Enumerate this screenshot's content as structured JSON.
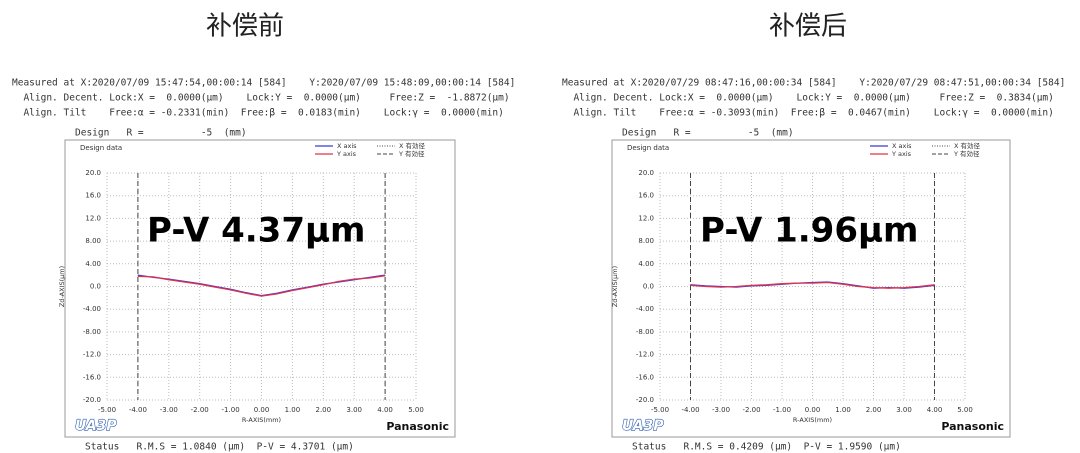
{
  "chart_data": [
    {
      "type": "line",
      "title": "补偿前",
      "header_lines": [
        "Measured at X:2020/07/09 15:47:54,00:00:14 [584]    Y:2020/07/09 15:48:09,00:00:14 [584]",
        "  Align. Decent. Lock:X =  0.0000(μm)    Lock:Y =  0.0000(μm)     Free:Z =  -1.8872(μm)",
        "  Align. Tilt    Free:α = -0.2331(min)  Free:β =  0.0183(min)    Lock:γ =  0.0000(min)"
      ],
      "design": "Design   R =          -5  (mm)",
      "panel_label": "Design data",
      "annotation": "P-V 4.37μm",
      "status": "Status   R.M.S = 1.0840 (μm)  P-V = 4.3701 (μm)",
      "logo_left": "UA3P",
      "logo_right": "Panasonic",
      "x_label": "R-AXIS(mm)",
      "y_label": "Zd-AXIS(μm)",
      "x": [
        -4,
        -3.5,
        -3,
        -2.5,
        -2,
        -1.5,
        -1,
        -0.5,
        0,
        0.5,
        1,
        1.5,
        2,
        2.5,
        3,
        3.5,
        4
      ],
      "series": [
        {
          "name": "X axis",
          "color": "#3b3bd6",
          "values": [
            2.0,
            1.6,
            1.3,
            0.9,
            0.5,
            0.0,
            -0.5,
            -1.1,
            -1.6,
            -1.2,
            -0.6,
            -0.1,
            0.4,
            0.8,
            1.2,
            1.6,
            2.0
          ]
        },
        {
          "name": "Y axis",
          "color": "#e0304a",
          "values": [
            1.8,
            1.7,
            1.2,
            0.8,
            0.4,
            -0.1,
            -0.6,
            -1.2,
            -1.7,
            -1.3,
            -0.7,
            -0.2,
            0.3,
            0.9,
            1.3,
            1.5,
            1.9
          ]
        }
      ],
      "effective_diameter": {
        "names": [
          "X 有効径",
          "Y 有効径"
        ],
        "x": [
          -4,
          4
        ]
      },
      "xlim": [
        -5,
        5
      ],
      "xticks": [
        {
          "value": -5,
          "label": "-5.00"
        },
        {
          "value": -4,
          "label": "-4.00"
        },
        {
          "value": -3,
          "label": "-3.00"
        },
        {
          "value": -2,
          "label": "-2.00"
        },
        {
          "value": -1,
          "label": "-1.00"
        },
        {
          "value": 0,
          "label": "0.00"
        },
        {
          "value": 1,
          "label": "1.00"
        },
        {
          "value": 2,
          "label": "2.00"
        },
        {
          "value": 3,
          "label": "3.00"
        },
        {
          "value": 4,
          "label": "4.00"
        },
        {
          "value": 5,
          "label": "5.00"
        }
      ],
      "ylim": [
        -20,
        20
      ],
      "yticks": [
        {
          "value": 20,
          "label": "20.0"
        },
        {
          "value": 16,
          "label": "16.0"
        },
        {
          "value": 12,
          "label": "12.0"
        },
        {
          "value": 8,
          "label": "8.00"
        },
        {
          "value": 4,
          "label": "4.00"
        },
        {
          "value": 0,
          "label": "0.0"
        },
        {
          "value": -4,
          "label": "-4.00"
        },
        {
          "value": -8,
          "label": "-8.00"
        },
        {
          "value": -12,
          "label": "-12.0"
        },
        {
          "value": -16,
          "label": "-16.0"
        },
        {
          "value": -20,
          "label": "-20.0"
        }
      ],
      "grid": true
    },
    {
      "type": "line",
      "title": "补偿后",
      "header_lines": [
        "Measured at X:2020/07/29 08:47:16,00:00:34 [584]    Y:2020/07/29 08:47:51,00:00:34 [584]",
        "  Align. Decent. Lock:X =  0.0000(μm)    Lock:Y =  0.0000(μm)     Free:Z =  0.3834(μm)",
        "  Align. Tilt    Free:α = -0.3093(min)  Free:β =  0.0467(min)    Lock:γ =  0.0000(min)"
      ],
      "design": "Design   R =          -5  (mm)",
      "panel_label": "Design data",
      "annotation": "P-V 1.96μm",
      "status": "Status   R.M.S = 0.4209 (μm)  P-V = 1.9590 (μm)",
      "logo_left": "UA3P",
      "logo_right": "Panasonic",
      "x_label": "R-AXIS(mm)",
      "y_label": "Zd-AXIS(μm)",
      "x": [
        -4,
        -3.5,
        -3,
        -2.5,
        -2,
        -1.5,
        -1,
        -0.5,
        0,
        0.5,
        1,
        1.5,
        2,
        2.5,
        3,
        3.5,
        4
      ],
      "series": [
        {
          "name": "X axis",
          "color": "#3b3bd6",
          "values": [
            0.3,
            0.1,
            0.0,
            -0.1,
            0.1,
            0.2,
            0.4,
            0.6,
            0.7,
            0.8,
            0.5,
            0.1,
            -0.3,
            -0.2,
            -0.3,
            -0.1,
            0.2
          ]
        },
        {
          "name": "Y axis",
          "color": "#e0304a",
          "values": [
            0.2,
            0.0,
            -0.1,
            0.0,
            0.2,
            0.3,
            0.5,
            0.6,
            0.6,
            0.7,
            0.4,
            0.0,
            -0.2,
            -0.3,
            -0.2,
            0.0,
            0.3
          ]
        }
      ],
      "effective_diameter": {
        "names": [
          "X 有効径",
          "Y 有効径"
        ],
        "x": [
          -4,
          4
        ]
      },
      "xlim": [
        -5,
        5
      ],
      "xticks": [
        {
          "value": -5,
          "label": "-5.00"
        },
        {
          "value": -4,
          "label": "-4.00"
        },
        {
          "value": -3,
          "label": "-3.00"
        },
        {
          "value": -2,
          "label": "-2.00"
        },
        {
          "value": -1,
          "label": "-1.00"
        },
        {
          "value": 0,
          "label": "0.00"
        },
        {
          "value": 1,
          "label": "1.00"
        },
        {
          "value": 2,
          "label": "2.00"
        },
        {
          "value": 3,
          "label": "3.00"
        },
        {
          "value": 4,
          "label": "4.00"
        },
        {
          "value": 5,
          "label": "5.00"
        }
      ],
      "ylim": [
        -20,
        20
      ],
      "yticks": [
        {
          "value": 20,
          "label": "20.0"
        },
        {
          "value": 16,
          "label": "16.0"
        },
        {
          "value": 12,
          "label": "12.0"
        },
        {
          "value": 8,
          "label": "8.00"
        },
        {
          "value": 4,
          "label": "4.00"
        },
        {
          "value": 0,
          "label": "0.0"
        },
        {
          "value": -4,
          "label": "-4.00"
        },
        {
          "value": -8,
          "label": "-8.00"
        },
        {
          "value": -12,
          "label": "-12.0"
        },
        {
          "value": -16,
          "label": "-16.0"
        },
        {
          "value": -20,
          "label": "-20.0"
        }
      ],
      "grid": true
    }
  ]
}
